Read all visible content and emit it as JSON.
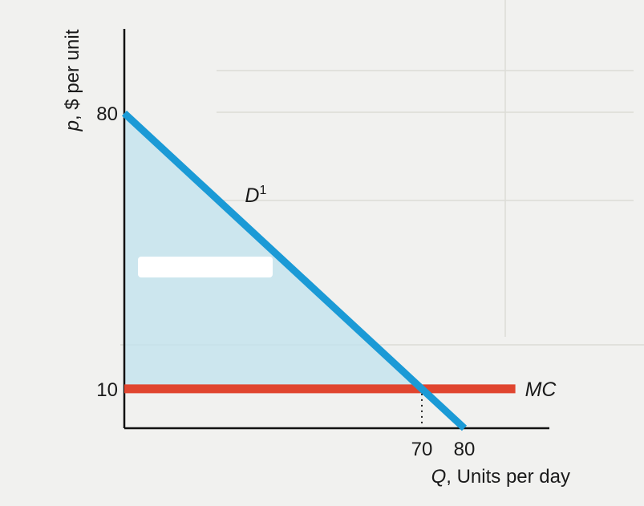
{
  "chart_data": {
    "type": "line",
    "ylabel_var": "p",
    "ylabel_rest": ", $ per unit",
    "xlabel_var": "Q",
    "xlabel_rest": ", Units per day",
    "xlim": [
      0,
      100
    ],
    "ylim": [
      0,
      100
    ],
    "x_ticks": [
      70,
      80
    ],
    "y_ticks": [
      80,
      10
    ],
    "grid": false,
    "series": [
      {
        "name": "D",
        "superscript": "1",
        "x": [
          0,
          80
        ],
        "y": [
          80,
          0
        ],
        "color": "#1b9ad6"
      },
      {
        "name": "MC",
        "x": [
          0,
          92
        ],
        "y": [
          10,
          10
        ],
        "color": "#e0452f"
      }
    ],
    "shaded_region": {
      "vertices_x": [
        0,
        0,
        70
      ],
      "vertices_y": [
        80,
        10,
        10
      ],
      "color": "#bfe1ee"
    },
    "annotations": [
      {
        "type": "dotted-drop-line",
        "x": 70,
        "y_from": 10,
        "y_to": 0
      }
    ]
  }
}
